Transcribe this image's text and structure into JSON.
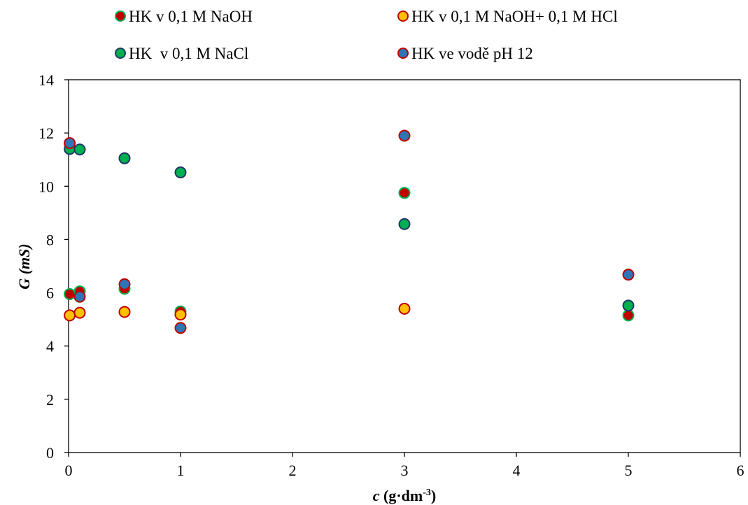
{
  "chart_data": {
    "type": "scatter",
    "title": "",
    "xlabel": {
      "main": "c",
      "unit_open": " (g·dm",
      "unit_exp": "-3",
      "unit_close": ")"
    },
    "ylabel": {
      "main": "G",
      "unit": " (mS)"
    },
    "xlim": [
      0,
      6
    ],
    "ylim": [
      0,
      14
    ],
    "x_ticks": [
      0,
      1,
      2,
      3,
      4,
      5,
      6
    ],
    "y_ticks": [
      0,
      2,
      4,
      6,
      8,
      10,
      12,
      14
    ],
    "grid": false,
    "legend_position": "top",
    "series": [
      {
        "name": "HK v 0,1 M NaOH",
        "fill": "#c00000",
        "edge": "#00b050",
        "points": [
          [
            0.01,
            5.95
          ],
          [
            0.1,
            6.05
          ],
          [
            0.5,
            6.15
          ],
          [
            1,
            5.3
          ],
          [
            3,
            9.75
          ],
          [
            5,
            5.15
          ]
        ]
      },
      {
        "name": "HK v 0,1 M NaOH+ 0,1 M HCl",
        "fill": "#ffc000",
        "edge": "#c00000",
        "points": [
          [
            0.01,
            5.15
          ],
          [
            0.1,
            5.25
          ],
          [
            0.5,
            5.28
          ],
          [
            1,
            5.18
          ],
          [
            3,
            5.4
          ]
        ]
      },
      {
        "name": "HK  v 0,1 M NaCl",
        "fill": "#00b050",
        "edge": "#1f3864",
        "points": [
          [
            0.01,
            11.4
          ],
          [
            0.1,
            11.38
          ],
          [
            0.5,
            11.05
          ],
          [
            1,
            10.52
          ],
          [
            3,
            8.58
          ],
          [
            5,
            5.52
          ]
        ]
      },
      {
        "name": "HK ve vodě pH 12",
        "fill": "#2e75b6",
        "edge": "#c00000",
        "points": [
          [
            0.01,
            11.62
          ],
          [
            0.1,
            5.85
          ],
          [
            0.5,
            6.32
          ],
          [
            1,
            4.68
          ],
          [
            3,
            11.9
          ],
          [
            5,
            6.68
          ]
        ]
      }
    ]
  }
}
